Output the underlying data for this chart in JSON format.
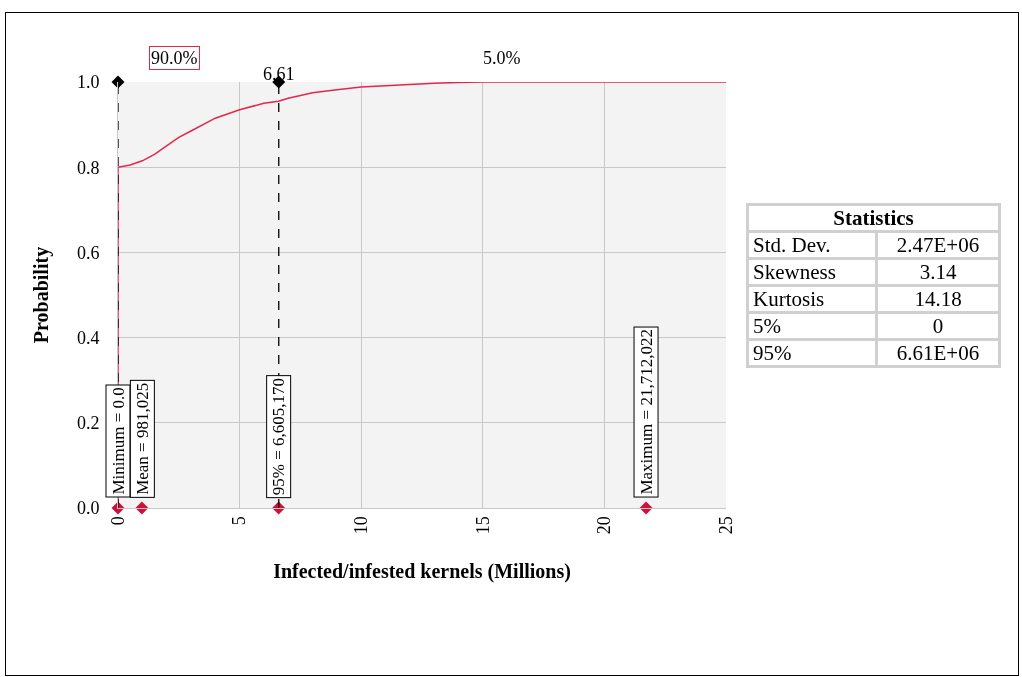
{
  "chart_data": [
    {
      "type": "line",
      "xlabel": "Infected/infested kernels (Millions)",
      "ylabel": "Probability",
      "xlim": [
        0,
        25
      ],
      "xticks": [
        0,
        5,
        10,
        15,
        20,
        25
      ],
      "ylim": [
        0,
        1
      ],
      "yticks": [
        {
          "value": 0,
          "label": "0.0"
        },
        {
          "value": 0.2,
          "label": "0.2"
        },
        {
          "value": 0.4,
          "label": "0.4"
        },
        {
          "value": 0.6,
          "label": "0.6"
        },
        {
          "value": 0.8,
          "label": "0.8"
        },
        {
          "value": 1,
          "label": "1.0"
        }
      ],
      "grid": true,
      "series": [
        {
          "color": "#e0284f",
          "marker": "none",
          "x": [
            0,
            0,
            0.5,
            1,
            1.5,
            2,
            2.5,
            3,
            4,
            5,
            6,
            6.6,
            7,
            8,
            9,
            10,
            11,
            12,
            13,
            14,
            15,
            20,
            25
          ],
          "values": [
            0,
            0.8,
            0.805,
            0.815,
            0.83,
            0.85,
            0.87,
            0.885,
            0.915,
            0.935,
            0.95,
            0.955,
            0.962,
            0.975,
            0.982,
            0.988,
            0.991,
            0.994,
            0.997,
            0.999,
            1,
            1,
            1
          ]
        },
        {
          "type": "scatter",
          "color": "#d0103a",
          "marker": "diamond",
          "x": [
            0,
            0.981025,
            6.60517,
            21.712022
          ],
          "values": [
            0,
            0,
            0,
            0
          ]
        },
        {
          "type": "scatter",
          "color": "#000000",
          "marker": "diamond",
          "x": [
            0,
            6.61
          ],
          "values": [
            1,
            1
          ]
        }
      ],
      "ref_lines": [
        {
          "axis": "x",
          "value": 0,
          "label": null,
          "color": "#000000",
          "line_style": "dashed"
        },
        {
          "axis": "x",
          "value": 6.61,
          "label": "6.61",
          "color": "#000000",
          "line_style": "dashed"
        }
      ],
      "annotations": [
        "90.0%",
        "5.0%",
        {
          "text": "Minimum = 0.0",
          "x": 0,
          "y": 0
        },
        {
          "text": "Mean = 981,025",
          "x": 0.981025,
          "y": 0
        },
        {
          "text": "95% = 6,605,170",
          "x": 6.60517,
          "y": 0
        },
        {
          "text": "Maximum = 21,712,022",
          "x": 21.712022,
          "y": 0
        }
      ]
    },
    {
      "type": "other",
      "title": "Statistics",
      "categories": [
        "Std. Dev.",
        "Skewness",
        "Kurtosis",
        "5%",
        "95%"
      ],
      "value_labels": [
        "2.47E+06",
        "3.14",
        "14.18",
        "0",
        "6.61E+06"
      ]
    }
  ]
}
